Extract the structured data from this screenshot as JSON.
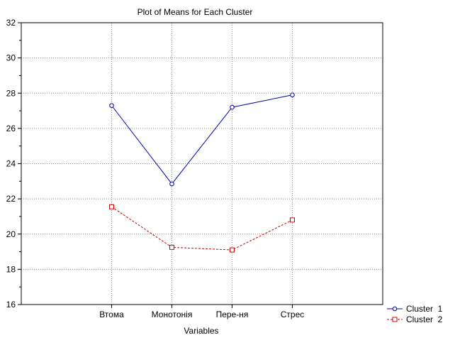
{
  "chart_data": {
    "type": "line",
    "title": "Plot of Means for Each Cluster",
    "xlabel": "Variables",
    "ylabel": "",
    "categories": [
      "Втома",
      "Монотонія",
      "Пере-ня",
      "Стрес"
    ],
    "ylim": [
      16,
      32
    ],
    "yticks": [
      16,
      18,
      20,
      22,
      24,
      26,
      28,
      30,
      32
    ],
    "grid": true,
    "legend": "right-bottom",
    "series": [
      {
        "name": "Cluster  1",
        "values": [
          27.3,
          22.85,
          27.2,
          27.9
        ],
        "color": "#0000aa",
        "marker": "circle",
        "dash": "solid"
      },
      {
        "name": "Cluster  2",
        "values": [
          21.55,
          19.25,
          19.1,
          20.8
        ],
        "color": "#cc0000",
        "marker": "square",
        "dash": "dashed"
      }
    ]
  }
}
